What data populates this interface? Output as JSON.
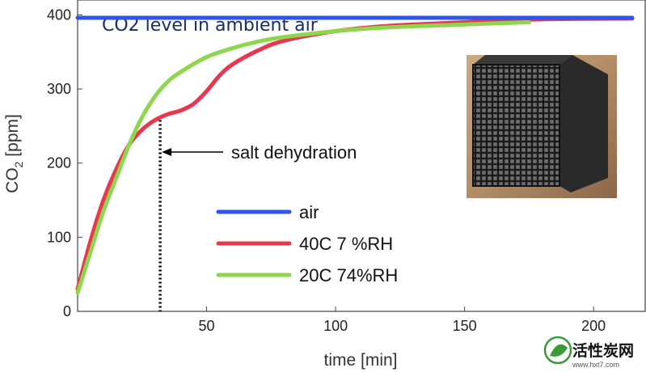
{
  "chart_data": {
    "type": "line",
    "title": "CO2 level in ambient air",
    "xlabel": "time [min]",
    "ylabel": "CO",
    "ylabel_sub": "2",
    "ylabel_unit": " [ppm]",
    "xlim": [
      0,
      220
    ],
    "ylim": [
      0,
      420
    ],
    "xticks": [
      50,
      100,
      150,
      200
    ],
    "yticks": [
      0,
      100,
      200,
      300,
      400
    ],
    "grid": false,
    "legend_position": "center",
    "series": [
      {
        "name": "air",
        "color": "#2f54e8",
        "x": [
          0,
          215
        ],
        "y": [
          396,
          396
        ]
      },
      {
        "name": "40C 7 %RH",
        "color": "#e8384f",
        "x": [
          0,
          5,
          10,
          15,
          20,
          25,
          30,
          35,
          40,
          45,
          50,
          55,
          60,
          70,
          80,
          100,
          120,
          150,
          180,
          215
        ],
        "y": [
          30,
          95,
          150,
          192,
          225,
          245,
          258,
          266,
          271,
          280,
          297,
          318,
          333,
          352,
          365,
          378,
          385,
          390,
          394,
          395
        ]
      },
      {
        "name": "20C 74%RH",
        "color": "#8ed64e",
        "x": [
          0,
          5,
          10,
          15,
          20,
          25,
          30,
          35,
          40,
          50,
          60,
          70,
          80,
          100,
          120,
          150,
          175
        ],
        "y": [
          25,
          80,
          135,
          180,
          225,
          262,
          290,
          310,
          323,
          343,
          355,
          364,
          370,
          378,
          383,
          387,
          390
        ]
      }
    ],
    "annotations": [
      {
        "text": "salt dehydration",
        "x": 32,
        "y": 258
      }
    ]
  },
  "watermark": {
    "text": "活性炭网",
    "url": "www.hxt7.com"
  }
}
